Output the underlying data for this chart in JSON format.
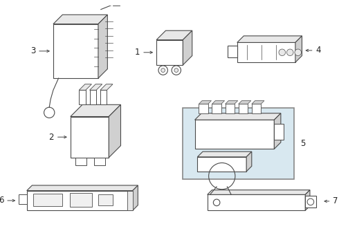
{
  "bg_color": "#ffffff",
  "line_color": "#4a4a4a",
  "lw": 0.8,
  "fill_light": "#e8e8e8",
  "fill_mid": "#d0d0d0",
  "fill_white": "#ffffff",
  "box5_fill": "#d8e8f0",
  "box5_edge": "#888888",
  "label_fontsize": 8.5,
  "label_color": "#222222",
  "arrow_color": "#444444"
}
